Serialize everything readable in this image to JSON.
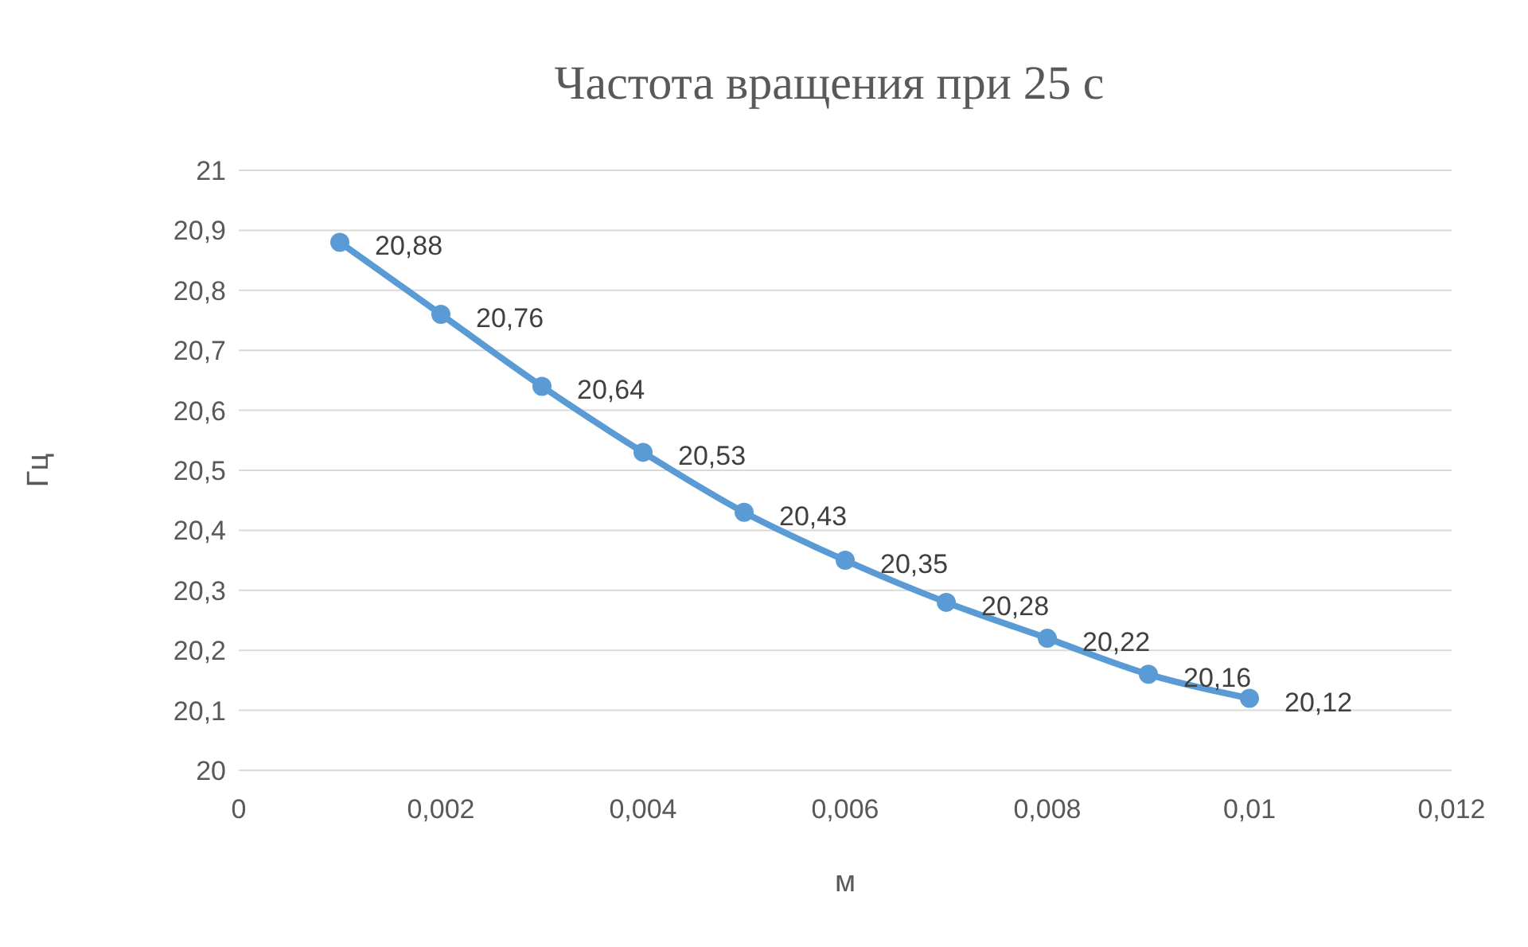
{
  "chart_data": {
    "type": "line",
    "title": "Частота вращения при 25 с",
    "xlabel": "м",
    "ylabel": "Гц",
    "x": [
      0.001,
      0.002,
      0.003,
      0.004,
      0.005,
      0.006,
      0.007,
      0.008,
      0.009,
      0.01
    ],
    "series": [
      {
        "color": "#5b9bd5",
        "values": [
          20.88,
          20.76,
          20.64,
          20.53,
          20.43,
          20.35,
          20.28,
          20.22,
          20.16,
          20.12
        ],
        "value_labels": [
          "20,88",
          "20,76",
          "20,64",
          "20,53",
          "20,43",
          "20,35",
          "20,28",
          "20,22",
          "20,16",
          "20,12"
        ]
      }
    ],
    "xlim": [
      0,
      0.012
    ],
    "xticks": [
      0,
      {
        "value": 0.002,
        "label": "0,002"
      },
      {
        "value": 0.004,
        "label": "0,004"
      },
      {
        "value": 0.006,
        "label": "0,006"
      },
      {
        "value": 0.008,
        "label": "0,008"
      },
      {
        "value": 0.01,
        "label": "0,01"
      },
      {
        "value": 0.012,
        "label": "0,012"
      }
    ],
    "ylim": [
      20,
      21
    ],
    "yticks": [
      20,
      {
        "value": 20.1,
        "label": "20,1"
      },
      {
        "value": 20.2,
        "label": "20,2"
      },
      {
        "value": 20.3,
        "label": "20,3"
      },
      {
        "value": 20.4,
        "label": "20,4"
      },
      {
        "value": 20.5,
        "label": "20,5"
      },
      {
        "value": 20.6,
        "label": "20,6"
      },
      {
        "value": 20.7,
        "label": "20,7"
      },
      {
        "value": 20.8,
        "label": "20,8"
      },
      {
        "value": 20.9,
        "label": "20,9"
      },
      21
    ],
    "grid": "y",
    "marker": "circle",
    "line_style": "solid"
  }
}
